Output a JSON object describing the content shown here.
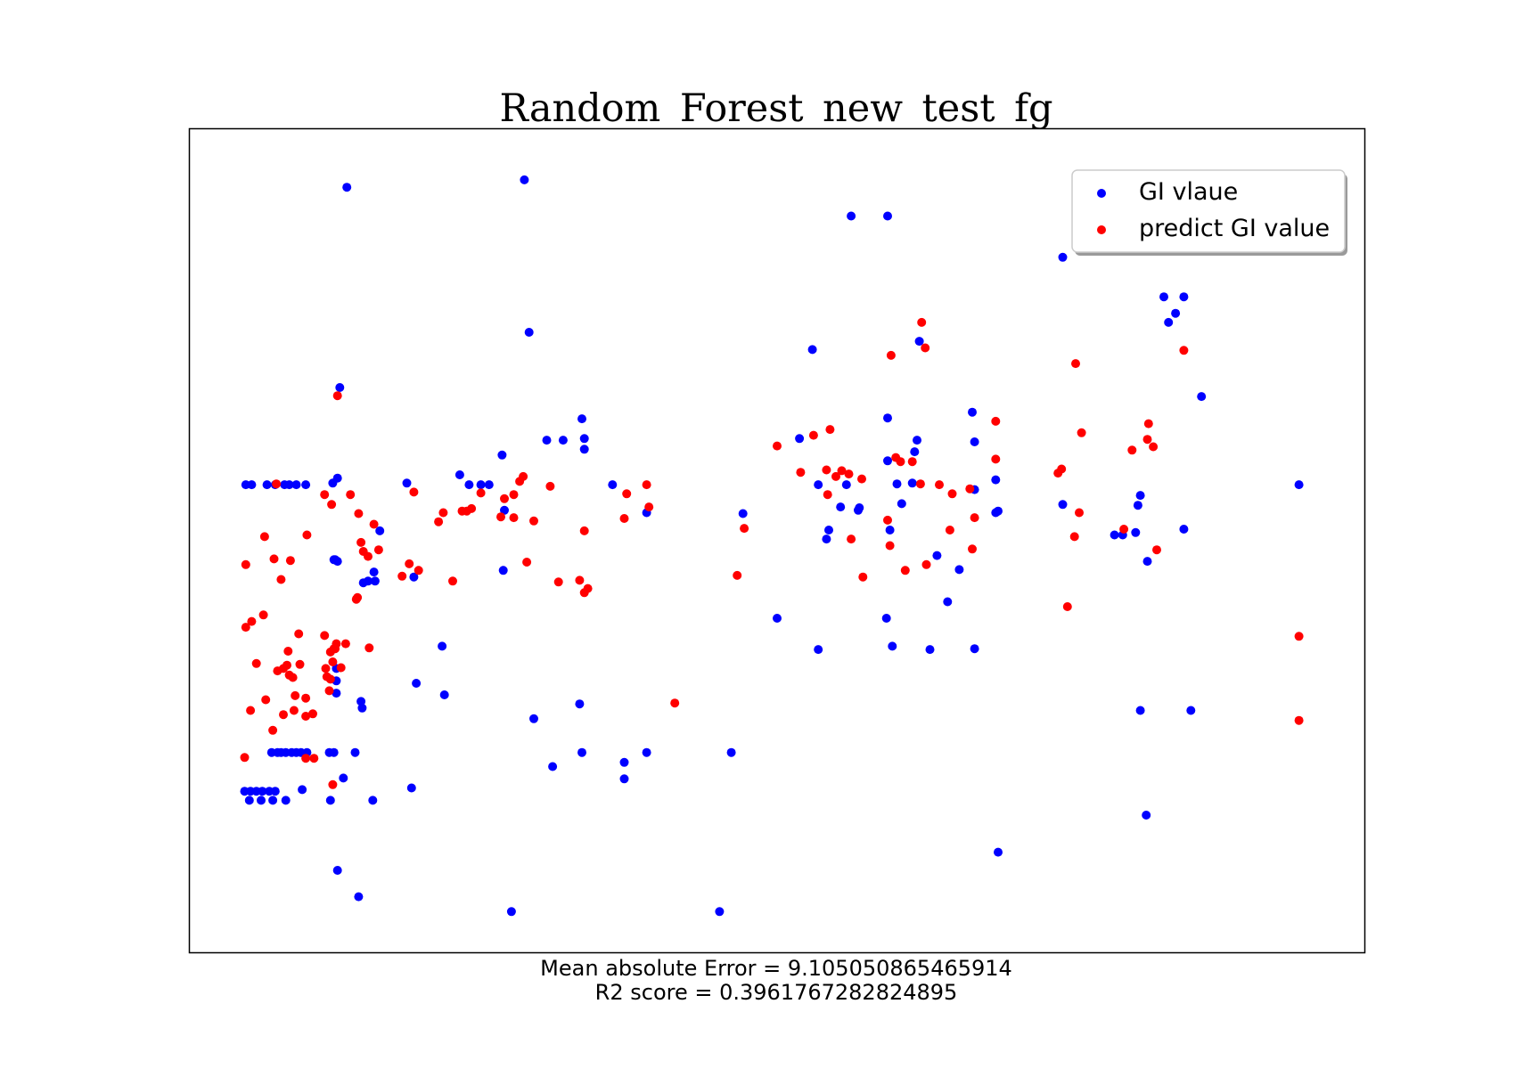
{
  "chart_data": {
    "type": "scatter",
    "title": "Random_Forest_new_test_fg",
    "xlabel_lines": [
      "Mean absolute Error = 9.105050865465914",
      "R2 score = 0.3961767282824895"
    ],
    "ticks_shown": false,
    "grid": false,
    "legend_position": "top-right",
    "xlim": [
      0,
      100
    ],
    "ylim": [
      0,
      100
    ],
    "series": [
      {
        "name": "GI vlaue",
        "color": "#0000ff",
        "points": [
          [
            4.8,
            56.8
          ],
          [
            5.3,
            56.8
          ],
          [
            6.6,
            56.8
          ],
          [
            7.3,
            56.8
          ],
          [
            8.1,
            56.8
          ],
          [
            8.5,
            56.8
          ],
          [
            9.1,
            56.8
          ],
          [
            9.9,
            56.8
          ],
          [
            4.7,
            19.6
          ],
          [
            5.2,
            19.6
          ],
          [
            5.7,
            19.6
          ],
          [
            6.2,
            19.6
          ],
          [
            6.8,
            19.6
          ],
          [
            7.3,
            19.6
          ],
          [
            9.6,
            19.8
          ],
          [
            5.1,
            18.5
          ],
          [
            6.1,
            18.5
          ],
          [
            7.1,
            18.5
          ],
          [
            8.2,
            18.5
          ],
          [
            12.0,
            18.5
          ],
          [
            15.6,
            18.5
          ],
          [
            7.0,
            24.3
          ],
          [
            7.5,
            24.3
          ],
          [
            7.8,
            24.3
          ],
          [
            8.2,
            24.3
          ],
          [
            8.7,
            24.3
          ],
          [
            9.1,
            24.3
          ],
          [
            9.5,
            24.3
          ],
          [
            10.0,
            24.3
          ],
          [
            11.9,
            24.3
          ],
          [
            12.3,
            24.3
          ],
          [
            14.1,
            24.3
          ],
          [
            12.2,
            57.0
          ],
          [
            12.6,
            57.6
          ],
          [
            12.3,
            47.7
          ],
          [
            12.4,
            47.7
          ],
          [
            12.5,
            31.5
          ],
          [
            12.5,
            33.0
          ],
          [
            12.5,
            34.5
          ],
          [
            12.8,
            68.6
          ],
          [
            12.6,
            47.5
          ],
          [
            13.1,
            21.2
          ],
          [
            12.6,
            10.0
          ],
          [
            13.4,
            92.9
          ],
          [
            14.6,
            30.5
          ],
          [
            14.7,
            29.7
          ],
          [
            14.8,
            44.9
          ],
          [
            15.2,
            45.1
          ],
          [
            15.8,
            45.1
          ],
          [
            15.7,
            46.2
          ],
          [
            16.2,
            51.2
          ],
          [
            14.4,
            6.8
          ],
          [
            18.5,
            57.0
          ],
          [
            18.9,
            20.0
          ],
          [
            19.1,
            45.6
          ],
          [
            19.3,
            32.7
          ],
          [
            21.5,
            37.2
          ],
          [
            21.7,
            31.3
          ],
          [
            23.0,
            58.0
          ],
          [
            23.8,
            56.8
          ],
          [
            24.8,
            56.8
          ],
          [
            25.5,
            56.8
          ],
          [
            26.6,
            60.4
          ],
          [
            26.7,
            46.4
          ],
          [
            26.8,
            53.7
          ],
          [
            27.4,
            5.0
          ],
          [
            28.5,
            93.8
          ],
          [
            28.9,
            75.3
          ],
          [
            29.3,
            28.4
          ],
          [
            30.4,
            62.2
          ],
          [
            31.8,
            62.2
          ],
          [
            30.9,
            22.6
          ],
          [
            33.2,
            30.2
          ],
          [
            33.4,
            24.3
          ],
          [
            33.4,
            64.8
          ],
          [
            33.6,
            61.1
          ],
          [
            33.6,
            62.4
          ],
          [
            36.0,
            56.8
          ],
          [
            37.0,
            21.1
          ],
          [
            37.0,
            23.1
          ],
          [
            38.9,
            53.4
          ],
          [
            38.9,
            24.3
          ],
          [
            46.1,
            24.3
          ],
          [
            45.1,
            5.0
          ],
          [
            47.1,
            53.3
          ],
          [
            50.0,
            40.6
          ],
          [
            51.9,
            62.4
          ],
          [
            53.0,
            73.2
          ],
          [
            53.5,
            36.8
          ],
          [
            53.5,
            56.8
          ],
          [
            54.2,
            50.2
          ],
          [
            54.4,
            51.3
          ],
          [
            55.4,
            54.1
          ],
          [
            55.9,
            56.8
          ],
          [
            56.3,
            89.4
          ],
          [
            56.9,
            53.7
          ],
          [
            57.0,
            54.0
          ],
          [
            59.4,
            89.4
          ],
          [
            59.4,
            64.9
          ],
          [
            59.4,
            59.7
          ],
          [
            59.3,
            40.6
          ],
          [
            59.6,
            51.3
          ],
          [
            59.8,
            37.2
          ],
          [
            60.2,
            56.9
          ],
          [
            60.6,
            54.5
          ],
          [
            61.5,
            57.0
          ],
          [
            61.7,
            60.8
          ],
          [
            61.9,
            62.2
          ],
          [
            62.1,
            74.2
          ],
          [
            63.0,
            36.8
          ],
          [
            63.6,
            48.2
          ],
          [
            64.5,
            42.6
          ],
          [
            65.5,
            46.5
          ],
          [
            66.6,
            65.6
          ],
          [
            66.8,
            62.0
          ],
          [
            66.8,
            56.2
          ],
          [
            66.8,
            36.9
          ],
          [
            68.6,
            57.4
          ],
          [
            68.6,
            53.4
          ],
          [
            68.8,
            53.6
          ],
          [
            68.8,
            12.2
          ],
          [
            74.3,
            84.4
          ],
          [
            74.3,
            54.4
          ],
          [
            78.7,
            50.7
          ],
          [
            79.4,
            50.7
          ],
          [
            80.5,
            51.0
          ],
          [
            80.7,
            54.3
          ],
          [
            80.9,
            55.5
          ],
          [
            80.9,
            29.4
          ],
          [
            81.4,
            16.7
          ],
          [
            81.5,
            47.5
          ],
          [
            82.9,
            79.6
          ],
          [
            83.3,
            76.5
          ],
          [
            83.9,
            77.6
          ],
          [
            84.6,
            79.6
          ],
          [
            85.2,
            29.4
          ],
          [
            86.1,
            67.5
          ],
          [
            84.6,
            51.4
          ],
          [
            94.4,
            56.8
          ]
        ]
      },
      {
        "name": "predict GI value",
        "color": "#ff0000",
        "points": [
          [
            4.7,
            23.7
          ],
          [
            4.8,
            39.5
          ],
          [
            4.8,
            47.1
          ],
          [
            5.2,
            29.4
          ],
          [
            5.3,
            40.2
          ],
          [
            5.7,
            35.1
          ],
          [
            6.3,
            41.0
          ],
          [
            6.4,
            50.5
          ],
          [
            6.5,
            30.7
          ],
          [
            7.1,
            27.0
          ],
          [
            7.2,
            47.8
          ],
          [
            7.4,
            56.9
          ],
          [
            7.5,
            34.2
          ],
          [
            7.8,
            45.3
          ],
          [
            8.0,
            34.5
          ],
          [
            8.0,
            28.9
          ],
          [
            8.3,
            34.9
          ],
          [
            8.4,
            36.6
          ],
          [
            8.5,
            33.7
          ],
          [
            8.6,
            47.6
          ],
          [
            8.8,
            33.4
          ],
          [
            8.9,
            29.4
          ],
          [
            9.0,
            31.2
          ],
          [
            9.3,
            38.7
          ],
          [
            9.4,
            35.0
          ],
          [
            9.9,
            30.9
          ],
          [
            9.9,
            28.7
          ],
          [
            9.9,
            23.6
          ],
          [
            10.0,
            50.7
          ],
          [
            10.5,
            29.0
          ],
          [
            10.6,
            23.6
          ],
          [
            11.5,
            55.6
          ],
          [
            11.5,
            38.5
          ],
          [
            11.6,
            34.5
          ],
          [
            11.7,
            33.5
          ],
          [
            11.9,
            31.8
          ],
          [
            12.0,
            33.2
          ],
          [
            12.0,
            36.5
          ],
          [
            12.1,
            54.4
          ],
          [
            12.2,
            20.4
          ],
          [
            12.2,
            35.3
          ],
          [
            12.3,
            36.9
          ],
          [
            12.4,
            36.9
          ],
          [
            12.5,
            37.5
          ],
          [
            12.6,
            67.6
          ],
          [
            12.9,
            34.6
          ],
          [
            13.3,
            37.5
          ],
          [
            13.7,
            55.6
          ],
          [
            14.2,
            42.9
          ],
          [
            14.3,
            43.1
          ],
          [
            14.4,
            53.3
          ],
          [
            14.6,
            49.8
          ],
          [
            14.8,
            48.7
          ],
          [
            15.2,
            48.1
          ],
          [
            15.3,
            37.0
          ],
          [
            15.7,
            52.0
          ],
          [
            16.1,
            48.9
          ],
          [
            18.1,
            45.7
          ],
          [
            18.7,
            47.2
          ],
          [
            19.1,
            55.9
          ],
          [
            19.5,
            46.4
          ],
          [
            21.2,
            52.3
          ],
          [
            21.6,
            53.4
          ],
          [
            22.4,
            45.1
          ],
          [
            23.2,
            53.6
          ],
          [
            23.6,
            53.6
          ],
          [
            24.0,
            53.9
          ],
          [
            24.8,
            55.8
          ],
          [
            26.5,
            52.9
          ],
          [
            26.8,
            55.1
          ],
          [
            27.6,
            55.6
          ],
          [
            28.1,
            57.2
          ],
          [
            27.6,
            52.8
          ],
          [
            28.4,
            57.8
          ],
          [
            28.7,
            47.4
          ],
          [
            29.3,
            52.4
          ],
          [
            30.7,
            56.6
          ],
          [
            31.4,
            45.0
          ],
          [
            33.2,
            45.2
          ],
          [
            33.6,
            43.7
          ],
          [
            33.6,
            51.2
          ],
          [
            33.9,
            44.2
          ],
          [
            37.0,
            52.7
          ],
          [
            37.2,
            55.7
          ],
          [
            38.9,
            56.8
          ],
          [
            39.1,
            54.1
          ],
          [
            41.3,
            30.3
          ],
          [
            46.6,
            45.8
          ],
          [
            47.2,
            51.5
          ],
          [
            50.0,
            61.5
          ],
          [
            52.0,
            58.3
          ],
          [
            53.1,
            62.8
          ],
          [
            54.2,
            58.6
          ],
          [
            54.3,
            55.6
          ],
          [
            54.5,
            63.5
          ],
          [
            55.0,
            57.8
          ],
          [
            55.5,
            58.5
          ],
          [
            56.1,
            58.1
          ],
          [
            56.3,
            50.2
          ],
          [
            57.2,
            57.5
          ],
          [
            57.3,
            45.6
          ],
          [
            59.4,
            52.5
          ],
          [
            59.6,
            49.4
          ],
          [
            59.7,
            72.5
          ],
          [
            60.1,
            60.1
          ],
          [
            60.5,
            59.6
          ],
          [
            60.9,
            46.4
          ],
          [
            61.5,
            59.6
          ],
          [
            62.2,
            56.9
          ],
          [
            62.3,
            76.5
          ],
          [
            62.6,
            73.4
          ],
          [
            62.7,
            47.1
          ],
          [
            63.8,
            56.8
          ],
          [
            64.7,
            51.3
          ],
          [
            64.9,
            55.7
          ],
          [
            66.4,
            56.3
          ],
          [
            66.6,
            49.0
          ],
          [
            66.8,
            52.8
          ],
          [
            68.6,
            59.9
          ],
          [
            68.6,
            64.5
          ],
          [
            73.9,
            58.2
          ],
          [
            74.2,
            58.7
          ],
          [
            74.7,
            42.0
          ],
          [
            75.3,
            50.5
          ],
          [
            75.4,
            71.5
          ],
          [
            75.7,
            53.4
          ],
          [
            75.9,
            63.1
          ],
          [
            79.5,
            51.4
          ],
          [
            80.2,
            61.0
          ],
          [
            81.5,
            62.3
          ],
          [
            82.0,
            61.4
          ],
          [
            82.3,
            48.9
          ],
          [
            81.6,
            64.2
          ],
          [
            84.6,
            73.1
          ],
          [
            94.4,
            38.4
          ],
          [
            94.4,
            28.2
          ]
        ]
      }
    ]
  }
}
